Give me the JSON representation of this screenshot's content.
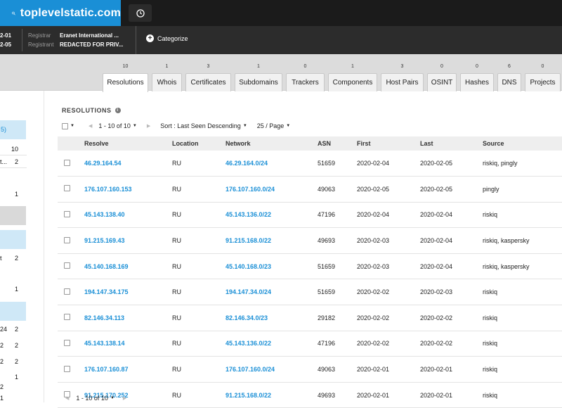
{
  "search": {
    "query": "toplevelstatic.com"
  },
  "infobar": {
    "date1": "2-01",
    "date2": "2-05",
    "registrar_key": "Registrar",
    "registrar_value": "Eranet International ...",
    "registrant_key": "Registrant",
    "registrant_value": "REDACTED FOR PRIV...",
    "categorize_label": "Categorize"
  },
  "tabs": [
    {
      "label": "Resolutions",
      "count": "10",
      "active": true
    },
    {
      "label": "Whois",
      "count": "1"
    },
    {
      "label": "Certificates",
      "count": "3"
    },
    {
      "label": "Subdomains",
      "count": "1"
    },
    {
      "label": "Trackers",
      "count": "0"
    },
    {
      "label": "Components",
      "count": "1"
    },
    {
      "label": "Host Pairs",
      "count": "3"
    },
    {
      "label": "OSINT",
      "count": "0"
    },
    {
      "label": "Hashes",
      "count": "0"
    },
    {
      "label": "DNS",
      "count": "6"
    },
    {
      "label": "Projects",
      "count": "0"
    }
  ],
  "sidebar": {
    "row1": "5)",
    "row2": "10",
    "row3a": "t...",
    "row3b": "2",
    "row4": "1",
    "row5a": "t",
    "row5b": "2",
    "row6": "1",
    "row7a": "24",
    "row7b": "2",
    "row8a": "2",
    "row8b": "2",
    "row9a": "2",
    "row9b": "2",
    "row10": "1",
    "row11": "2",
    "row12": "1"
  },
  "section": {
    "title": "RESOLUTIONS"
  },
  "controls": {
    "range": "1 - 10 of 10",
    "sort": "Sort : Last Seen Descending",
    "per_page": "25 / Page"
  },
  "table": {
    "columns": [
      "Resolve",
      "Location",
      "Network",
      "ASN",
      "First",
      "Last",
      "Source"
    ],
    "rows": [
      {
        "resolve": "46.29.164.54",
        "location": "RU",
        "network": "46.29.164.0/24",
        "asn": "51659",
        "first": "2020-02-04",
        "last": "2020-02-05",
        "source": "riskiq, pingly"
      },
      {
        "resolve": "176.107.160.153",
        "location": "RU",
        "network": "176.107.160.0/24",
        "asn": "49063",
        "first": "2020-02-05",
        "last": "2020-02-05",
        "source": "pingly"
      },
      {
        "resolve": "45.143.138.40",
        "location": "RU",
        "network": "45.143.136.0/22",
        "asn": "47196",
        "first": "2020-02-04",
        "last": "2020-02-04",
        "source": "riskiq"
      },
      {
        "resolve": "91.215.169.43",
        "location": "RU",
        "network": "91.215.168.0/22",
        "asn": "49693",
        "first": "2020-02-03",
        "last": "2020-02-04",
        "source": "riskiq, kaspersky"
      },
      {
        "resolve": "45.140.168.169",
        "location": "RU",
        "network": "45.140.168.0/23",
        "asn": "51659",
        "first": "2020-02-03",
        "last": "2020-02-04",
        "source": "riskiq, kaspersky"
      },
      {
        "resolve": "194.147.34.175",
        "location": "RU",
        "network": "194.147.34.0/24",
        "asn": "51659",
        "first": "2020-02-02",
        "last": "2020-02-03",
        "source": "riskiq"
      },
      {
        "resolve": "82.146.34.113",
        "location": "RU",
        "network": "82.146.34.0/23",
        "asn": "29182",
        "first": "2020-02-02",
        "last": "2020-02-02",
        "source": "riskiq"
      },
      {
        "resolve": "45.143.138.14",
        "location": "RU",
        "network": "45.143.136.0/22",
        "asn": "47196",
        "first": "2020-02-02",
        "last": "2020-02-02",
        "source": "riskiq"
      },
      {
        "resolve": "176.107.160.87",
        "location": "RU",
        "network": "176.107.160.0/24",
        "asn": "49063",
        "first": "2020-02-01",
        "last": "2020-02-01",
        "source": "riskiq"
      },
      {
        "resolve": "91.215.170.252",
        "location": "RU",
        "network": "91.215.168.0/22",
        "asn": "49693",
        "first": "2020-02-01",
        "last": "2020-02-01",
        "source": "riskiq"
      }
    ]
  },
  "footer": {
    "range": "1 - 10 of 10"
  },
  "colors": {
    "accent": "#1a8fd6",
    "topbar": "#1b1b1b",
    "infobar": "#2c2c2c"
  }
}
